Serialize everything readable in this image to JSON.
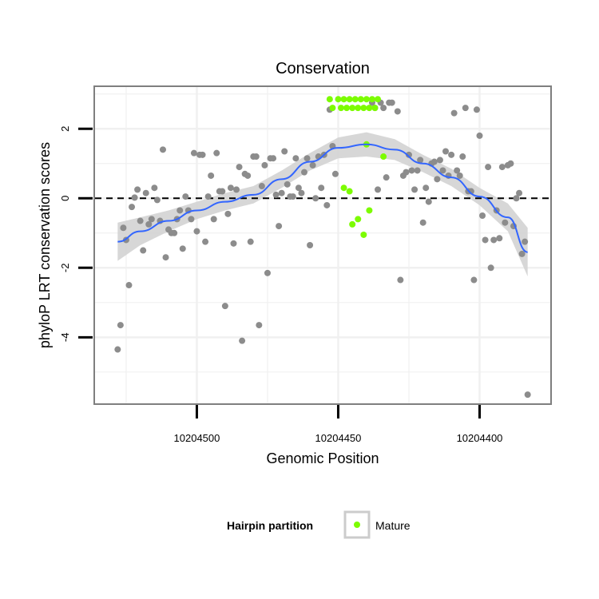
{
  "chart_data": {
    "type": "scatter",
    "title": "Conservation",
    "xlabel": "Genomic Position",
    "ylabel": "phyloP LRT conservation scores",
    "x_reversed": true,
    "xlim": [
      10204375,
      10204536
    ],
    "ylim": [
      -5.9,
      3.2
    ],
    "x_ticks": [
      10204500,
      10204450,
      10204400
    ],
    "x_tick_labels": [
      "10204500",
      "10204450",
      "10204400"
    ],
    "y_ticks": [
      2,
      0,
      -2,
      -4
    ],
    "y_tick_labels": [
      "2",
      "0",
      "-2",
      "-4"
    ],
    "grid": true,
    "reference_line": {
      "y": 0,
      "style": "dashed",
      "color": "#000000"
    },
    "colors": {
      "background_points": "#8c8c8c",
      "mature": "#7cfc00",
      "smooth_line": "#3366ff",
      "confidence_band": "#d3d3d3",
      "panel_border": "#7f7f7f",
      "grid": "#f0f0f0"
    },
    "legend": {
      "title": "Hairpin partition",
      "position": "bottom",
      "entries": [
        {
          "label": "Mature",
          "color": "#7cfc00"
        }
      ]
    },
    "series": [
      {
        "type": "scatter",
        "color": "#8c8c8c",
        "points": [
          [
            10204528,
            -4.35
          ],
          [
            10204527,
            -3.65
          ],
          [
            10204526,
            -0.85
          ],
          [
            10204525,
            -1.2
          ],
          [
            10204524,
            -2.5
          ],
          [
            10204523,
            -0.25
          ],
          [
            10204522,
            0.02
          ],
          [
            10204521,
            0.25
          ],
          [
            10204520,
            -0.65
          ],
          [
            10204519,
            -1.5
          ],
          [
            10204518,
            0.15
          ],
          [
            10204517,
            -0.75
          ],
          [
            10204516,
            -0.6
          ],
          [
            10204515,
            0.3
          ],
          [
            10204514,
            -0.05
          ],
          [
            10204513,
            -0.65
          ],
          [
            10204512,
            1.4
          ],
          [
            10204511,
            -1.7
          ],
          [
            10204510,
            -0.9
          ],
          [
            10204509,
            -1.0
          ],
          [
            10204508,
            -1.0
          ],
          [
            10204507,
            -0.6
          ],
          [
            10204506,
            -0.35
          ],
          [
            10204505,
            -1.45
          ],
          [
            10204504,
            0.05
          ],
          [
            10204503,
            -0.35
          ],
          [
            10204502,
            -0.6
          ],
          [
            10204501,
            1.3
          ],
          [
            10204500,
            -0.95
          ],
          [
            10204499,
            1.25
          ],
          [
            10204498,
            1.25
          ],
          [
            10204497,
            -1.25
          ],
          [
            10204496,
            0.05
          ],
          [
            10204495,
            0.65
          ],
          [
            10204494,
            -0.6
          ],
          [
            10204493,
            1.3
          ],
          [
            10204492,
            0.2
          ],
          [
            10204491,
            0.2
          ],
          [
            10204490,
            -3.1
          ],
          [
            10204489,
            -0.45
          ],
          [
            10204488,
            0.3
          ],
          [
            10204487,
            -1.3
          ],
          [
            10204486,
            0.25
          ],
          [
            10204485,
            0.9
          ],
          [
            10204484,
            -4.1
          ],
          [
            10204483,
            0.7
          ],
          [
            10204482,
            0.65
          ],
          [
            10204481,
            -1.25
          ],
          [
            10204480,
            1.2
          ],
          [
            10204479,
            1.2
          ],
          [
            10204478,
            -3.65
          ],
          [
            10204477,
            0.35
          ],
          [
            10204476,
            0.95
          ],
          [
            10204475,
            -2.15
          ],
          [
            10204474,
            1.15
          ],
          [
            10204473,
            1.15
          ],
          [
            10204472,
            0.1
          ],
          [
            10204471,
            -0.8
          ],
          [
            10204470,
            0.15
          ],
          [
            10204469,
            1.35
          ],
          [
            10204468,
            0.4
          ],
          [
            10204467,
            0.05
          ],
          [
            10204466,
            0.05
          ],
          [
            10204465,
            1.15
          ],
          [
            10204464,
            0.3
          ],
          [
            10204463,
            0.15
          ],
          [
            10204462,
            0.75
          ],
          [
            10204461,
            1.15
          ],
          [
            10204460,
            -1.35
          ],
          [
            10204459,
            0.95
          ],
          [
            10204458,
            0.0
          ],
          [
            10204457,
            1.2
          ],
          [
            10204456,
            0.3
          ],
          [
            10204455,
            1.25
          ],
          [
            10204454,
            -0.2
          ],
          [
            10204453,
            2.55
          ],
          [
            10204452,
            1.5
          ],
          [
            10204451,
            0.7
          ],
          [
            10204438,
            2.75
          ],
          [
            10204437,
            2.6
          ],
          [
            10204436,
            0.25
          ],
          [
            10204435,
            2.75
          ],
          [
            10204434,
            2.6
          ],
          [
            10204433,
            0.6
          ],
          [
            10204432,
            2.75
          ],
          [
            10204431,
            2.75
          ],
          [
            10204429,
            2.5
          ],
          [
            10204428,
            -2.35
          ],
          [
            10204427,
            0.65
          ],
          [
            10204426,
            0.75
          ],
          [
            10204425,
            1.25
          ],
          [
            10204424,
            0.8
          ],
          [
            10204423,
            0.25
          ],
          [
            10204422,
            0.8
          ],
          [
            10204421,
            1.1
          ],
          [
            10204420,
            -0.7
          ],
          [
            10204419,
            0.3
          ],
          [
            10204418,
            -0.1
          ],
          [
            10204417,
            1.0
          ],
          [
            10204416,
            1.05
          ],
          [
            10204415,
            0.55
          ],
          [
            10204414,
            1.1
          ],
          [
            10204413,
            0.8
          ],
          [
            10204412,
            1.35
          ],
          [
            10204411,
            0.65
          ],
          [
            10204410,
            1.25
          ],
          [
            10204409,
            2.45
          ],
          [
            10204408,
            0.8
          ],
          [
            10204407,
            0.65
          ],
          [
            10204406,
            1.2
          ],
          [
            10204405,
            2.6
          ],
          [
            10204404,
            0.2
          ],
          [
            10204403,
            0.2
          ],
          [
            10204402,
            -2.35
          ],
          [
            10204401,
            2.55
          ],
          [
            10204400,
            1.8
          ],
          [
            10204399,
            -0.5
          ],
          [
            10204398,
            -1.2
          ],
          [
            10204397,
            0.9
          ],
          [
            10204396,
            -2.0
          ],
          [
            10204395,
            -1.2
          ],
          [
            10204394,
            -0.35
          ],
          [
            10204393,
            -1.15
          ],
          [
            10204392,
            0.9
          ],
          [
            10204391,
            -0.7
          ],
          [
            10204390,
            0.95
          ],
          [
            10204389,
            1.0
          ],
          [
            10204388,
            -0.8
          ],
          [
            10204387,
            0.0
          ],
          [
            10204386,
            0.15
          ],
          [
            10204385,
            -1.6
          ],
          [
            10204384,
            -1.25
          ],
          [
            10204383,
            -5.65
          ]
        ]
      },
      {
        "name": "Mature",
        "type": "scatter",
        "color": "#7cfc00",
        "points": [
          [
            10204453,
            2.85
          ],
          [
            10204452,
            2.6
          ],
          [
            10204450,
            2.85
          ],
          [
            10204449,
            2.6
          ],
          [
            10204448,
            2.85
          ],
          [
            10204447,
            2.6
          ],
          [
            10204446,
            2.85
          ],
          [
            10204445,
            2.6
          ],
          [
            10204444,
            2.85
          ],
          [
            10204443,
            2.6
          ],
          [
            10204442,
            2.85
          ],
          [
            10204441,
            2.6
          ],
          [
            10204440,
            2.85
          ],
          [
            10204439,
            2.6
          ],
          [
            10204438,
            2.85
          ],
          [
            10204437,
            2.6
          ],
          [
            10204436,
            2.85
          ],
          [
            10204440,
            1.55
          ],
          [
            10204434,
            1.2
          ],
          [
            10204448,
            0.3
          ],
          [
            10204446,
            0.2
          ],
          [
            10204445,
            -0.75
          ],
          [
            10204443,
            -0.6
          ],
          [
            10204441,
            -1.05
          ],
          [
            10204439,
            -0.35
          ]
        ]
      }
    ],
    "smooth": {
      "x": [
        10204528,
        10204520,
        10204510,
        10204500,
        10204490,
        10204480,
        10204470,
        10204460,
        10204450,
        10204440,
        10204430,
        10204420,
        10204410,
        10204400,
        10204390,
        10204383
      ],
      "y": [
        -1.25,
        -0.95,
        -0.65,
        -0.35,
        -0.1,
        0.1,
        0.55,
        1.05,
        1.45,
        1.55,
        1.4,
        1.0,
        0.6,
        0.05,
        -0.55,
        -1.55
      ],
      "band_half_width": [
        0.55,
        0.4,
        0.3,
        0.25,
        0.25,
        0.25,
        0.25,
        0.25,
        0.3,
        0.35,
        0.3,
        0.25,
        0.25,
        0.25,
        0.4,
        0.7
      ]
    }
  }
}
